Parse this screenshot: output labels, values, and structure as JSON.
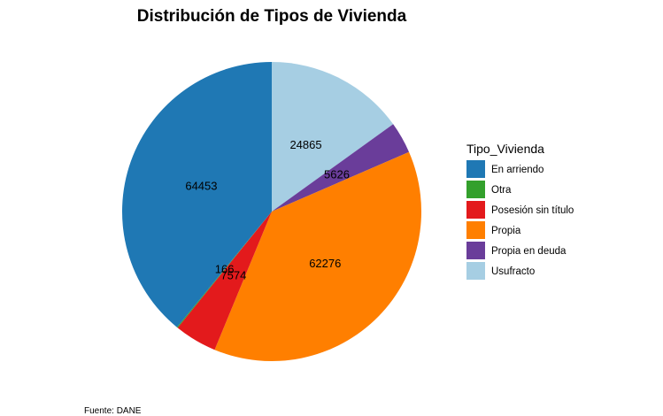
{
  "chart_data": {
    "type": "pie",
    "title": "Distribución de Tipos de Vivienda",
    "legend_title": "Tipo_Vivienda",
    "legend_position": "right",
    "caption": "Fuente: DANE",
    "slices": [
      {
        "name": "Usufracto",
        "value": 24865,
        "color": "#A6CEE3"
      },
      {
        "name": "Propia en deuda",
        "value": 5626,
        "color": "#6A3D9A"
      },
      {
        "name": "Propia",
        "value": 62276,
        "color": "#FF7F00"
      },
      {
        "name": "Posesión sin título",
        "value": 7574,
        "color": "#E31A1C"
      },
      {
        "name": "Otra",
        "value": 166,
        "color": "#33A02C"
      },
      {
        "name": "En arriendo",
        "value": 64453,
        "color": "#1F78B4"
      }
    ],
    "legend_items": [
      {
        "name": "En arriendo",
        "color": "#1F78B4"
      },
      {
        "name": "Otra",
        "color": "#33A02C"
      },
      {
        "name": "Posesión sin título",
        "color": "#E31A1C"
      },
      {
        "name": "Propia",
        "color": "#FF7F00"
      },
      {
        "name": "Propia en deuda",
        "color": "#6A3D9A"
      },
      {
        "name": "Usufracto",
        "color": "#A6CEE3"
      }
    ]
  }
}
